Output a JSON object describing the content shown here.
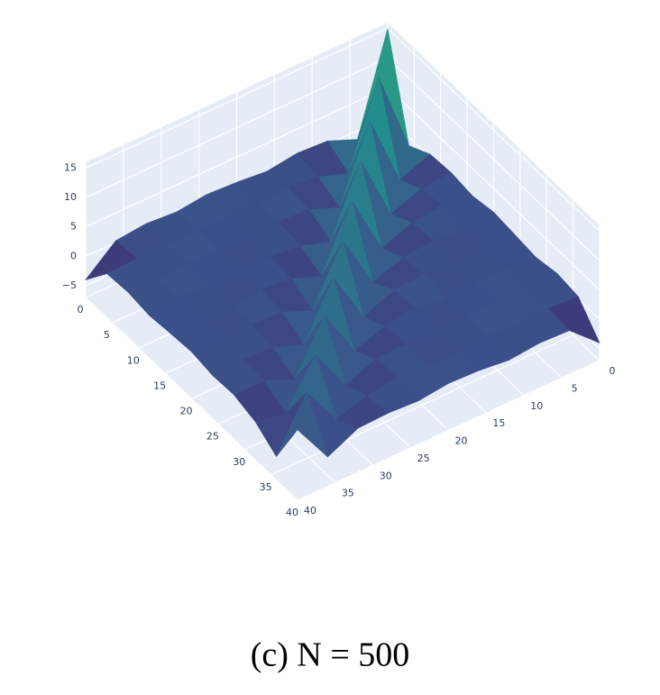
{
  "chart_data": {
    "type": "surface",
    "caption": "(c) N = 500",
    "x": [
      0,
      4,
      8,
      12,
      16,
      20,
      24,
      28,
      32,
      36,
      40
    ],
    "y": [
      0,
      4,
      8,
      12,
      16,
      20,
      24,
      28,
      32,
      36,
      40
    ],
    "z": [
      [
        15,
        -1.5,
        0.5,
        0.8,
        0.3,
        1.0,
        0.6,
        0.2,
        0.9,
        0.4,
        -4
      ],
      [
        -1.5,
        12.5,
        -1.5,
        0.4,
        1.1,
        0.2,
        0.7,
        1.0,
        0.3,
        0.8,
        0.5
      ],
      [
        0.6,
        -1.5,
        11,
        -1.5,
        0.5,
        0.9,
        0.1,
        0.6,
        1.2,
        0.4,
        0.7
      ],
      [
        0.9,
        0.3,
        -1.5,
        10,
        -1.5,
        0.4,
        1.0,
        0.3,
        0.5,
        0.9,
        0.2
      ],
      [
        0.2,
        1.0,
        0.6,
        -1.5,
        9,
        -1.5,
        0.7,
        1.1,
        0.2,
        0.6,
        0.8
      ],
      [
        0.7,
        0.4,
        0.9,
        0.2,
        -1.5,
        8,
        -1.5,
        0.4,
        0.8,
        0.3,
        1.0
      ],
      [
        1.0,
        0.6,
        0.3,
        0.8,
        0.5,
        -1.5,
        7.5,
        -1.5,
        0.6,
        1.0,
        0.4
      ],
      [
        0.4,
        0.9,
        0.7,
        0.2,
        1.0,
        0.6,
        -1.5,
        7,
        -1.5,
        0.2,
        0.7
      ],
      [
        0.8,
        0.2,
        1.1,
        0.5,
        0.3,
        0.9,
        0.4,
        -1.5,
        6,
        -1.5,
        0.5
      ],
      [
        0.3,
        0.7,
        0.4,
        0.9,
        0.6,
        0.2,
        0.8,
        0.5,
        -1.5,
        5.5,
        -2
      ],
      [
        -4,
        0.5,
        0.8,
        0.3,
        0.7,
        1.0,
        0.4,
        0.6,
        -0.5,
        -3,
        5
      ]
    ],
    "colorscale": [
      "#440154",
      "#3b528b",
      "#21918c",
      "#5ec962",
      "#fde725"
    ],
    "xlim": [
      0,
      40
    ],
    "ylim": [
      0,
      40
    ],
    "zlim": [
      -7,
      16
    ],
    "xticks": [
      0,
      5,
      10,
      15,
      20,
      25,
      30,
      35,
      40
    ],
    "yticks": [
      0,
      5,
      10,
      15,
      20,
      25,
      30,
      35,
      40
    ],
    "zticks": [
      {
        "value": -5,
        "label": "−5"
      },
      0,
      5,
      10,
      15
    ],
    "wall_color": "#e5ecf6",
    "grid": true
  }
}
